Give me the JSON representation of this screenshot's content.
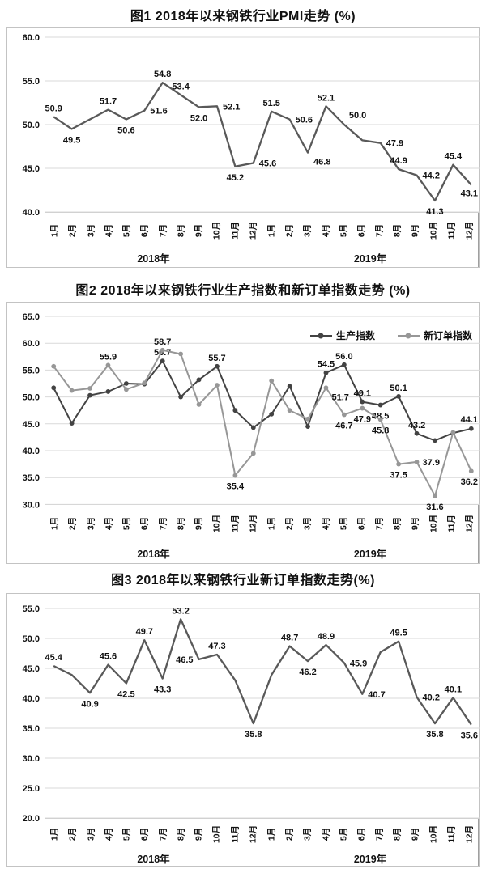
{
  "page": {
    "background": "#ffffff",
    "text_color": "#111111"
  },
  "chart_data": [
    {
      "id": "pmi-trend",
      "type": "line",
      "title": "图1 2018年以来钢铁行业PMI走势 (%)",
      "ylabel": "",
      "xlabel": "",
      "ylim": [
        40,
        60
      ],
      "y_ticks": [
        "60.0",
        "55.0",
        "50.0",
        "45.0",
        "40.0"
      ],
      "grid": true,
      "months": [
        "1月",
        "2月",
        "3月",
        "4月",
        "5月",
        "6月",
        "7月",
        "8月",
        "9月",
        "10月",
        "11月",
        "12月"
      ],
      "years": [
        "2018年",
        "2019年"
      ],
      "legend": null,
      "series": [
        {
          "name": "钢铁行业PMI",
          "color": "#595959",
          "marker": false,
          "values": [
            50.9,
            49.5,
            50.6,
            51.7,
            50.6,
            51.6,
            54.8,
            53.4,
            52.0,
            52.1,
            45.2,
            45.6,
            51.5,
            50.6,
            46.8,
            52.1,
            50.0,
            48.2,
            47.9,
            44.9,
            44.2,
            41.3,
            45.4,
            43.1
          ],
          "point_labels": [
            {
              "i": 0,
              "pos": "above"
            },
            {
              "i": 1,
              "pos": "below"
            },
            {
              "i": 3,
              "pos": "above"
            },
            {
              "i": 4,
              "pos": "below"
            },
            {
              "i": 5,
              "pos": "right"
            },
            {
              "i": 6,
              "pos": "above"
            },
            {
              "i": 7,
              "pos": "above"
            },
            {
              "i": 8,
              "pos": "below"
            },
            {
              "i": 9,
              "pos": "right"
            },
            {
              "i": 10,
              "pos": "below"
            },
            {
              "i": 11,
              "pos": "right"
            },
            {
              "i": 12,
              "pos": "above"
            },
            {
              "i": 13,
              "pos": "right"
            },
            {
              "i": 14,
              "pos": "right-below"
            },
            {
              "i": 15,
              "pos": "above"
            },
            {
              "i": 16,
              "pos": "above-right"
            },
            {
              "i": 18,
              "pos": "right"
            },
            {
              "i": 19,
              "pos": "above"
            },
            {
              "i": 20,
              "pos": "right"
            },
            {
              "i": 21,
              "pos": "below"
            },
            {
              "i": 22,
              "pos": "above"
            },
            {
              "i": 23,
              "pos": "edge-right"
            }
          ]
        }
      ]
    },
    {
      "id": "production-neworders",
      "type": "line",
      "title": "图2 2018年以来钢铁行业生产指数和新订单指数走势 (%)",
      "ylabel": "",
      "xlabel": "",
      "ylim": [
        30,
        65
      ],
      "y_ticks": [
        "65.0",
        "60.0",
        "55.0",
        "50.0",
        "45.0",
        "40.0",
        "35.0",
        "30.0"
      ],
      "grid": true,
      "months": [
        "1月",
        "2月",
        "3月",
        "4月",
        "5月",
        "6月",
        "7月",
        "8月",
        "9月",
        "10月",
        "11月",
        "12月"
      ],
      "years": [
        "2018年",
        "2019年"
      ],
      "legend": {
        "position": "top-right",
        "items": [
          "生产指数",
          "新订单指数"
        ]
      },
      "series": [
        {
          "name": "生产指数",
          "color": "#434343",
          "marker": true,
          "values": [
            51.7,
            45.1,
            50.3,
            51.0,
            52.5,
            52.4,
            56.7,
            50.0,
            53.2,
            55.7,
            47.5,
            44.3,
            46.8,
            52.0,
            44.5,
            54.5,
            56.0,
            49.1,
            48.5,
            50.1,
            43.2,
            41.9,
            43.3,
            44.1
          ],
          "point_labels": [
            {
              "i": 6,
              "pos": "above"
            },
            {
              "i": 9,
              "pos": "above"
            },
            {
              "i": 15,
              "pos": "above"
            },
            {
              "i": 16,
              "pos": "above"
            },
            {
              "i": 17,
              "pos": "above"
            },
            {
              "i": 18,
              "pos": "below"
            },
            {
              "i": 19,
              "pos": "above"
            },
            {
              "i": 20,
              "pos": "above"
            },
            {
              "i": 23,
              "pos": "edge-above"
            }
          ]
        },
        {
          "name": "新订单指数",
          "color": "#979797",
          "marker": true,
          "values": [
            55.7,
            51.2,
            51.6,
            55.9,
            51.4,
            52.6,
            58.7,
            58.0,
            48.6,
            52.2,
            35.4,
            39.5,
            53.0,
            47.5,
            45.9,
            51.7,
            46.7,
            47.9,
            45.8,
            37.5,
            37.9,
            31.6,
            43.4,
            36.2
          ],
          "point_labels": [
            {
              "i": 3,
              "pos": "above"
            },
            {
              "i": 6,
              "pos": "above"
            },
            {
              "i": 10,
              "pos": "below"
            },
            {
              "i": 15,
              "pos": "right-below"
            },
            {
              "i": 16,
              "pos": "below"
            },
            {
              "i": 17,
              "pos": "below"
            },
            {
              "i": 18,
              "pos": "below"
            },
            {
              "i": 19,
              "pos": "below"
            },
            {
              "i": 20,
              "pos": "right"
            },
            {
              "i": 21,
              "pos": "below"
            },
            {
              "i": 23,
              "pos": "edge-below"
            }
          ]
        }
      ]
    },
    {
      "id": "neworders-trend",
      "type": "line",
      "title": "图3 2018年以来钢铁行业新订单指数走势(%)",
      "ylabel": "",
      "xlabel": "",
      "ylim": [
        20,
        55
      ],
      "y_ticks": [
        "55.0",
        "50.0",
        "45.0",
        "40.0",
        "35.0",
        "30.0",
        "25.0",
        "20.0"
      ],
      "grid": true,
      "months": [
        "1月",
        "2月",
        "3月",
        "4月",
        "5月",
        "6月",
        "7月",
        "8月",
        "9月",
        "10月",
        "11月",
        "12月"
      ],
      "years": [
        "2018年",
        "2019年"
      ],
      "legend": null,
      "series": [
        {
          "name": "新订单指数",
          "color": "#595959",
          "marker": false,
          "values": [
            45.4,
            43.9,
            40.9,
            45.6,
            42.5,
            49.7,
            43.3,
            53.2,
            46.5,
            47.3,
            43.0,
            35.8,
            43.9,
            48.7,
            46.2,
            48.9,
            45.9,
            40.7,
            47.7,
            49.5,
            40.2,
            35.8,
            40.1,
            35.6
          ],
          "point_labels": [
            {
              "i": 0,
              "pos": "above"
            },
            {
              "i": 2,
              "pos": "below"
            },
            {
              "i": 3,
              "pos": "above"
            },
            {
              "i": 4,
              "pos": "below"
            },
            {
              "i": 5,
              "pos": "above"
            },
            {
              "i": 6,
              "pos": "below"
            },
            {
              "i": 7,
              "pos": "above"
            },
            {
              "i": 8,
              "pos": "left"
            },
            {
              "i": 9,
              "pos": "above"
            },
            {
              "i": 11,
              "pos": "below"
            },
            {
              "i": 13,
              "pos": "above"
            },
            {
              "i": 14,
              "pos": "below"
            },
            {
              "i": 15,
              "pos": "above"
            },
            {
              "i": 16,
              "pos": "right"
            },
            {
              "i": 17,
              "pos": "right"
            },
            {
              "i": 19,
              "pos": "above"
            },
            {
              "i": 20,
              "pos": "right"
            },
            {
              "i": 21,
              "pos": "below"
            },
            {
              "i": 22,
              "pos": "above"
            },
            {
              "i": 23,
              "pos": "edge-below"
            }
          ]
        }
      ]
    }
  ]
}
